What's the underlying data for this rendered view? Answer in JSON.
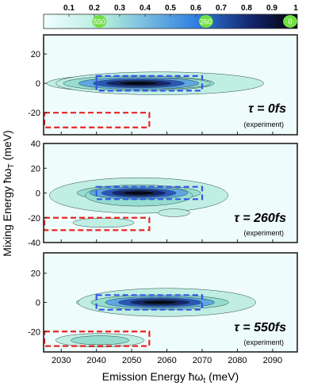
{
  "chart_data": {
    "type": "heatmap",
    "colorbar": {
      "ticks": [
        0.1,
        0.2,
        0.3,
        0.4,
        0.5,
        0.6,
        0.7,
        0.8,
        0.9,
        1
      ],
      "tick_labels": [
        "0.1",
        "0.2",
        "0.3",
        "0.4",
        "0.5",
        "0.6",
        "0.7",
        "0.8",
        "0.9",
        "1"
      ],
      "range": [
        0,
        1
      ],
      "colors": [
        "#f0ffff",
        "#b0eadc",
        "#2f7fe0",
        "#14246e",
        "#000000"
      ],
      "markers": [
        {
          "label": "550",
          "value": 0.22,
          "color": "#6fe041"
        },
        {
          "label": "260",
          "value": 0.64,
          "color": "#6fe041"
        },
        {
          "label": "0",
          "value": 1.0,
          "color": "#6fe041"
        }
      ]
    },
    "xlabel": "Emission Energy ħω",
    "xlabel_sub": "t",
    "xlabel_unit": " (meV)",
    "ylabel": "Mixing Energy ħω",
    "ylabel_sub": "T",
    "ylabel_unit": " (meV)",
    "xlim": [
      2025,
      2097
    ],
    "xticks": [
      2030,
      2040,
      2050,
      2060,
      2070,
      2080,
      2090
    ],
    "xtick_labels": [
      "2030",
      "2040",
      "2050",
      "2060",
      "2070",
      "2080",
      "2090"
    ],
    "panels": [
      {
        "tau_label": "τ = 0fs",
        "note": "(experiment)",
        "ylim": [
          -35,
          33
        ],
        "yticks": [
          20,
          0,
          -20
        ],
        "ytick_labels": [
          "20",
          "0",
          "-20"
        ],
        "blobs": [
          {
            "cx": 2052,
            "cy": 0,
            "sx": 11,
            "sy": 2.6,
            "amp": 1.0
          },
          {
            "cx": 2058,
            "cy": 0,
            "sx": 19,
            "sy": 5.0,
            "amp": 0.2
          }
        ],
        "blue_box": {
          "x": [
            2040,
            2070
          ],
          "y": [
            -5,
            5
          ]
        },
        "red_box": {
          "x": [
            2025,
            2055
          ],
          "y": [
            -30,
            -20
          ]
        }
      },
      {
        "tau_label": "τ = 260fs",
        "note": "(experiment)",
        "ylim": [
          -40,
          40
        ],
        "yticks": [
          40,
          20,
          0,
          -20,
          -40
        ],
        "ytick_labels": [
          "40",
          "20",
          "0",
          "-20",
          "-40"
        ],
        "blobs": [
          {
            "cx": 2052,
            "cy": 0,
            "sx": 9,
            "sy": 3.2,
            "amp": 1.0
          },
          {
            "cx": 2052,
            "cy": -2,
            "sx": 15,
            "sy": 8.5,
            "amp": 0.25
          },
          {
            "cx": 2042,
            "cy": -24,
            "sx": 7,
            "sy": 3,
            "amp": 0.13
          },
          {
            "cx": 2062,
            "cy": -16,
            "sx": 5,
            "sy": 3.5,
            "amp": 0.09
          }
        ],
        "blue_box": {
          "x": [
            2040,
            2070
          ],
          "y": [
            -5,
            5
          ]
        },
        "red_box": {
          "x": [
            2025,
            2055
          ],
          "y": [
            -30,
            -20
          ]
        }
      },
      {
        "tau_label": "τ = 550fs",
        "note": "(experiment)",
        "ylim": [
          -34,
          34
        ],
        "yticks": [
          20,
          0,
          -20
        ],
        "ytick_labels": [
          "20",
          "0",
          "-20"
        ],
        "blobs": [
          {
            "cx": 2058,
            "cy": 0,
            "sx": 10,
            "sy": 2.6,
            "amp": 1.0
          },
          {
            "cx": 2060,
            "cy": 0,
            "sx": 17,
            "sy": 6.5,
            "amp": 0.18
          },
          {
            "cx": 2041,
            "cy": -26,
            "sx": 7,
            "sy": 2.6,
            "amp": 0.3
          }
        ],
        "blue_box": {
          "x": [
            2040,
            2070
          ],
          "y": [
            -5,
            5
          ]
        },
        "red_box": {
          "x": [
            2025,
            2055
          ],
          "y": [
            -30,
            -20
          ]
        }
      }
    ]
  }
}
